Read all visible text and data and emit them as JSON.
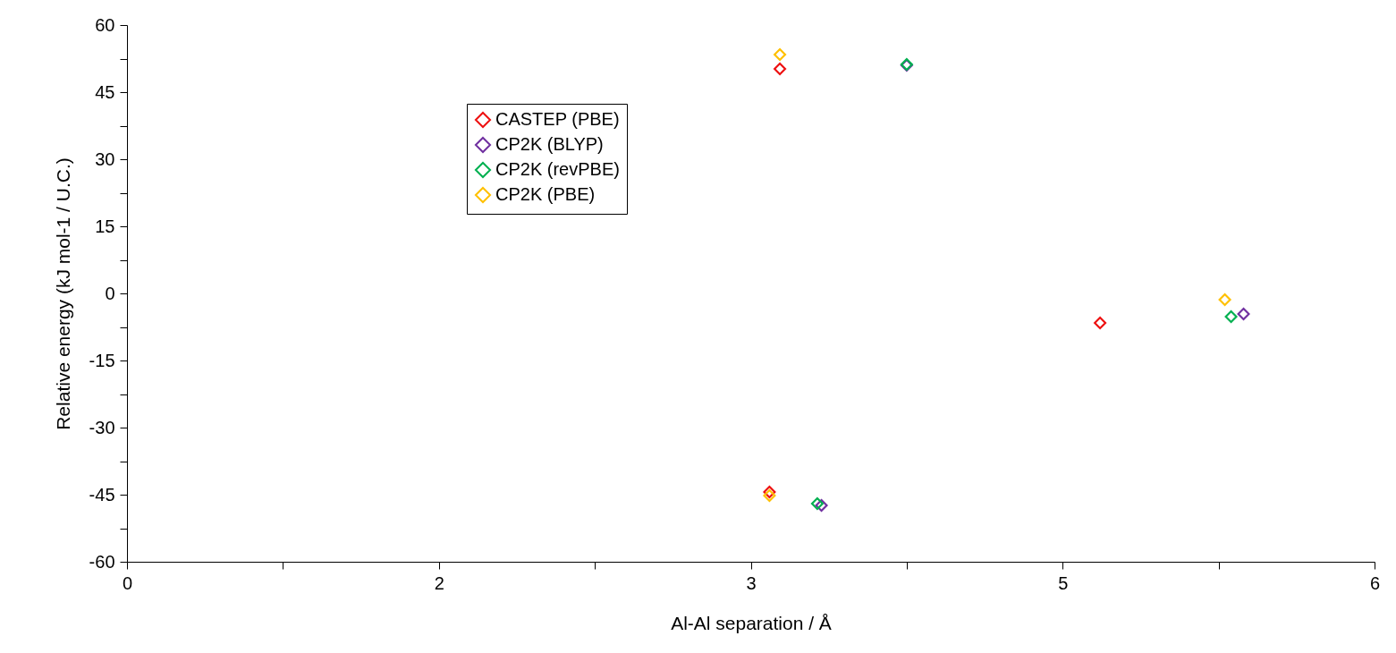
{
  "chart_data": {
    "type": "scatter",
    "xlabel": "Al-Al separation / Å",
    "ylabel": "Relative energy (kJ mol-1 / U.C.)",
    "xlim": [
      0,
      6
    ],
    "ylim": [
      -60,
      60
    ],
    "xticks": [
      0,
      {
        "value": 0.75,
        "label": null
      },
      {
        "value": 1.5,
        "label": "2"
      },
      {
        "value": 2.25,
        "label": null
      },
      3,
      {
        "value": 3.75,
        "label": null
      },
      {
        "value": 4.5,
        "label": "5"
      },
      {
        "value": 5.25,
        "label": null
      },
      6
    ],
    "yticks": [
      -60,
      {
        "value": -52.5,
        "label": null
      },
      -45,
      {
        "value": -37.5,
        "label": null
      },
      -30,
      {
        "value": -22.5,
        "label": null
      },
      -15,
      {
        "value": -7.5,
        "label": null
      },
      0,
      {
        "value": 7.5,
        "label": null
      },
      15,
      {
        "value": 22.5,
        "label": null
      },
      30,
      {
        "value": 37.5,
        "label": null
      },
      45,
      {
        "value": 52.5,
        "label": null
      },
      60
    ],
    "marker": "diamond",
    "grid": false,
    "legend": "top left",
    "series": [
      {
        "name": "CASTEP (PBE)",
        "color": "#ee1111",
        "x": [
          3.14,
          3.09,
          4.68
        ],
        "values": [
          50.2,
          -44.4,
          -6.6
        ]
      },
      {
        "name": "CP2K (BLYP)",
        "color": "#7030a0",
        "x": [
          3.75,
          3.34,
          5.37
        ],
        "values": [
          51.0,
          -47.4,
          -4.6
        ]
      },
      {
        "name": "CP2K (revPBE)",
        "color": "#00b050",
        "x": [
          3.75,
          3.32,
          5.31
        ],
        "values": [
          51.2,
          -47.0,
          -5.2
        ]
      },
      {
        "name": "CP2K (PBE)",
        "color": "#ffc000",
        "x": [
          3.14,
          3.09,
          5.28
        ],
        "values": [
          53.4,
          -45.2,
          -1.4
        ]
      }
    ]
  }
}
